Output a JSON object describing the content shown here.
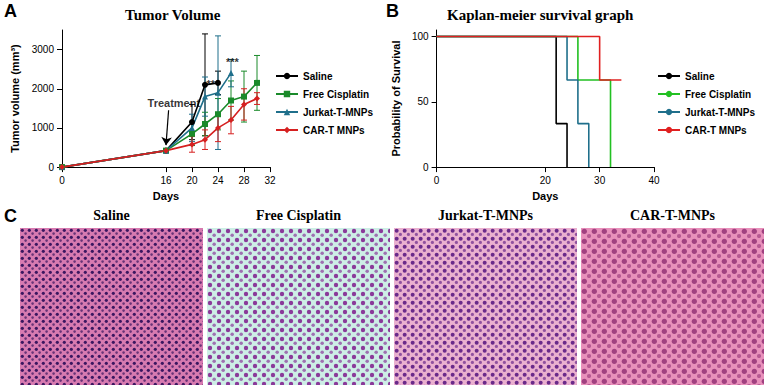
{
  "chart_data": [
    {
      "panel": "A",
      "type": "line",
      "title": "Tumor Volume",
      "x_label": "Days",
      "y_label": "Tumor volume (mm³)",
      "xlim": [
        0,
        32
      ],
      "xticks": [
        0,
        16,
        20,
        24,
        28,
        32
      ],
      "ylim": [
        0,
        3500
      ],
      "yticks": [
        0,
        1000,
        2000,
        3000
      ],
      "grid": false,
      "legend": "right",
      "series": [
        {
          "name": "Saline",
          "color": "#000000",
          "marker": "circle",
          "x": [
            0,
            16,
            20,
            22,
            24
          ],
          "values": [
            0,
            420,
            1150,
            2100,
            2150
          ],
          "errors": [
            null,
            null,
            450,
            1300,
            300
          ]
        },
        {
          "name": "Free Cisplatin",
          "color": "#1a8a2a",
          "marker": "square",
          "x": [
            0,
            16,
            20,
            22,
            24,
            26,
            28,
            30
          ],
          "values": [
            0,
            420,
            850,
            1100,
            1350,
            1700,
            1800,
            2150
          ],
          "errors": [
            null,
            null,
            300,
            300,
            400,
            500,
            650,
            700
          ]
        },
        {
          "name": "Jurkat-T-MNPs",
          "color": "#1f6f8b",
          "marker": "triangle",
          "x": [
            0,
            16,
            20,
            22,
            24,
            26
          ],
          "values": [
            0,
            420,
            1000,
            1800,
            1900,
            2400
          ],
          "errors": [
            null,
            null,
            350,
            500,
            1450,
            350
          ]
        },
        {
          "name": "CAR-T MNPs",
          "color": "#d62020",
          "marker": "diamond",
          "x": [
            0,
            16,
            20,
            22,
            24,
            26,
            28,
            30
          ],
          "values": [
            0,
            420,
            580,
            700,
            1000,
            1200,
            1600,
            1750
          ],
          "errors": [
            null,
            null,
            200,
            250,
            350,
            350,
            400,
            150
          ]
        }
      ],
      "annotations": [
        {
          "text": "Treatment",
          "x": 17.2,
          "y": 1500,
          "arrow_to": [
            16,
            560
          ]
        },
        {
          "text": "***",
          "x": 23.2,
          "y": 1980
        },
        {
          "text": "***",
          "x": 26.2,
          "y": 2550
        }
      ]
    },
    {
      "panel": "B",
      "type": "line",
      "title": "Kaplan-meier survival graph",
      "x_label": "Days",
      "y_label": "Probability of Survival",
      "xlim": [
        0,
        40
      ],
      "xticks": [
        0,
        20,
        30,
        40
      ],
      "ylim": [
        0,
        105
      ],
      "yticks": [
        0,
        50,
        100
      ],
      "grid": false,
      "legend": "right",
      "line_style": "step",
      "series": [
        {
          "name": "Saline",
          "color": "#000000",
          "x": [
            0,
            22,
            24
          ],
          "values": [
            100,
            33.3,
            0
          ]
        },
        {
          "name": "Free Cisplatin",
          "color": "#22c022",
          "x": [
            0,
            26,
            32
          ],
          "values": [
            100,
            66.7,
            0
          ]
        },
        {
          "name": "Jurkat-T-MNPs",
          "color": "#1f6f8b",
          "x": [
            0,
            24,
            26,
            28
          ],
          "values": [
            100,
            66.7,
            33.3,
            0
          ]
        },
        {
          "name": "CAR-T MNPs",
          "color": "#e02020",
          "x": [
            0,
            30,
            34
          ],
          "values": [
            100,
            66.7,
            66.7
          ]
        }
      ]
    }
  ],
  "images": {
    "panel": "C",
    "titles": [
      "Saline",
      "Free Cisplatin",
      "Jurkat-T-MNPs",
      "CAR-T-MNPs"
    ]
  }
}
